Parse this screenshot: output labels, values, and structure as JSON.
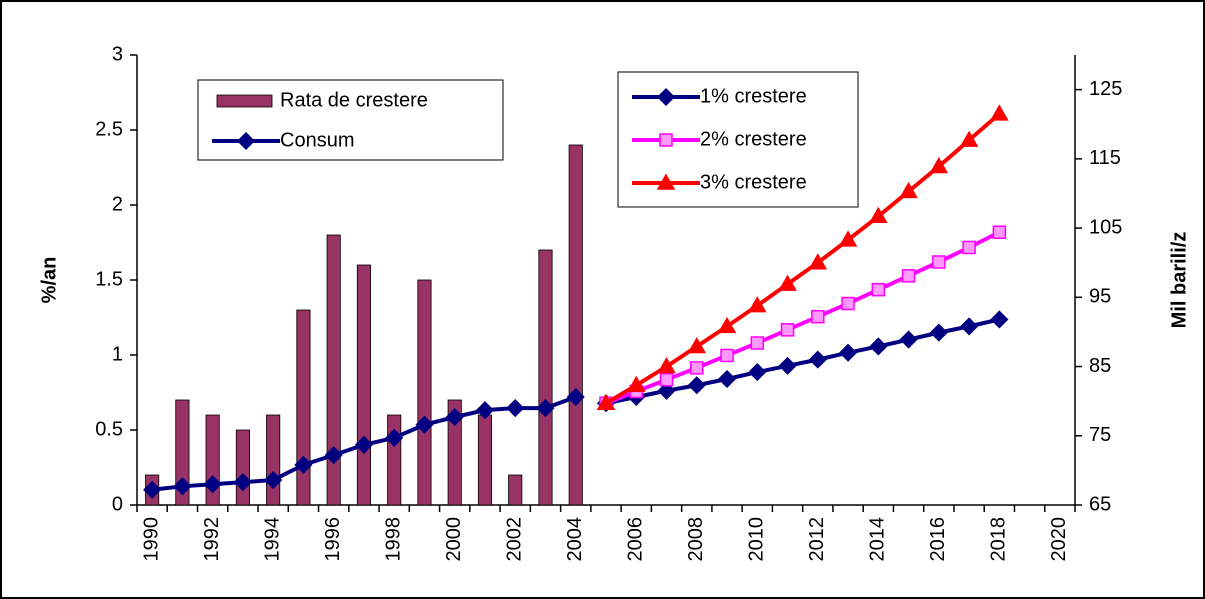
{
  "chart_data": {
    "type": "bar_line",
    "categories": [
      "1990",
      null,
      "1992",
      null,
      "1994",
      null,
      "1996",
      null,
      "1998",
      null,
      "2000",
      null,
      "2002",
      null,
      "2004",
      null,
      "2006",
      null,
      "2008",
      null,
      "2010",
      null,
      "2012",
      null,
      "2014",
      null,
      "2016",
      null,
      "2018",
      null,
      "2020"
    ],
    "ylabel": "%/an",
    "y2label": "Mil barili/z",
    "ylim": [
      0,
      3
    ],
    "yticks": [
      0,
      0.5,
      1,
      1.5,
      2,
      2.5,
      3
    ],
    "y2lim": [
      65,
      130
    ],
    "y2ticks": [
      65,
      75,
      85,
      95,
      105,
      115,
      125
    ],
    "series": [
      {
        "name": "Rata de crestere",
        "kind": "bar",
        "color": "#993366",
        "values": [
          0.2,
          0.7,
          0.6,
          0.5,
          0.6,
          1.3,
          1.8,
          1.6,
          0.6,
          1.5,
          0.7,
          0.6,
          0.2,
          1.7,
          2.4,
          null,
          null,
          null,
          null,
          null,
          null,
          null,
          null,
          null,
          null,
          null,
          null,
          null,
          null,
          null,
          null
        ]
      },
      {
        "name": "Consum",
        "kind": "line",
        "axis": "y2",
        "marker": "diamond",
        "color": "#000080",
        "values": [
          67.2,
          67.7,
          68.0,
          68.3,
          68.6,
          70.8,
          72.2,
          73.7,
          74.7,
          76.6,
          77.7,
          78.7,
          79.0,
          79.0,
          80.6,
          null,
          null,
          null,
          null,
          null,
          null,
          null,
          null,
          null,
          null,
          null,
          null,
          null,
          null,
          null,
          null
        ]
      },
      {
        "name": "1% crestere",
        "kind": "line",
        "axis": "y2",
        "marker": "diamond",
        "color": "#000080",
        "values": [
          null,
          null,
          null,
          null,
          null,
          null,
          null,
          null,
          null,
          null,
          null,
          null,
          null,
          null,
          null,
          79.7,
          80.6,
          81.5,
          82.3,
          83.2,
          84.2,
          85.1,
          86.0,
          87.0,
          87.9,
          88.9,
          89.9,
          90.8,
          91.8,
          null,
          null
        ]
      },
      {
        "name": "2% crestere",
        "kind": "line",
        "axis": "y2",
        "marker": "square",
        "color": "#ff00ff",
        "values": [
          null,
          null,
          null,
          null,
          null,
          null,
          null,
          null,
          null,
          null,
          null,
          null,
          null,
          null,
          null,
          79.7,
          81.4,
          83.1,
          84.8,
          86.6,
          88.4,
          90.3,
          92.2,
          94.1,
          96.1,
          98.1,
          100.1,
          102.2,
          104.4,
          null,
          null
        ]
      },
      {
        "name": "3% crestere",
        "kind": "line",
        "axis": "y2",
        "marker": "triangle",
        "color": "#ff0000",
        "values": [
          null,
          null,
          null,
          null,
          null,
          null,
          null,
          null,
          null,
          null,
          null,
          null,
          null,
          null,
          null,
          79.7,
          82.3,
          85.0,
          87.9,
          90.8,
          93.8,
          96.9,
          100.0,
          103.3,
          106.7,
          110.3,
          113.9,
          117.7,
          121.5,
          null,
          null
        ]
      }
    ]
  }
}
